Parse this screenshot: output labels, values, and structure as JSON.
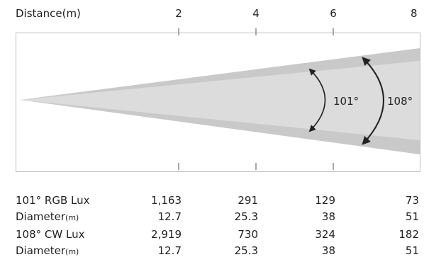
{
  "header": {
    "axis_label": "Distance(m)"
  },
  "distance_ticks": [
    "2",
    "4",
    "6",
    "8"
  ],
  "angles": {
    "inner": "101°",
    "outer": "108°"
  },
  "colors": {
    "outer_beam": "#c9c9c9",
    "inner_beam": "#dcdcdc",
    "border": "#bdbdbd",
    "text": "#222222",
    "tick": "#8a8a8a"
  },
  "table": {
    "rows": [
      {
        "label": "101° RGB Lux",
        "unit": "",
        "values": [
          "1,163",
          "291",
          "129",
          "73"
        ]
      },
      {
        "label": "Diameter",
        "unit": "(m)",
        "values": [
          "12.7",
          "25.3",
          "38",
          "51"
        ]
      },
      {
        "label": "108° CW Lux",
        "unit": "",
        "values": [
          "2,919",
          "730",
          "324",
          "182"
        ]
      },
      {
        "label": "Diameter",
        "unit": "(m)",
        "values": [
          "12.7",
          "25.3",
          "38",
          "51"
        ]
      }
    ]
  }
}
